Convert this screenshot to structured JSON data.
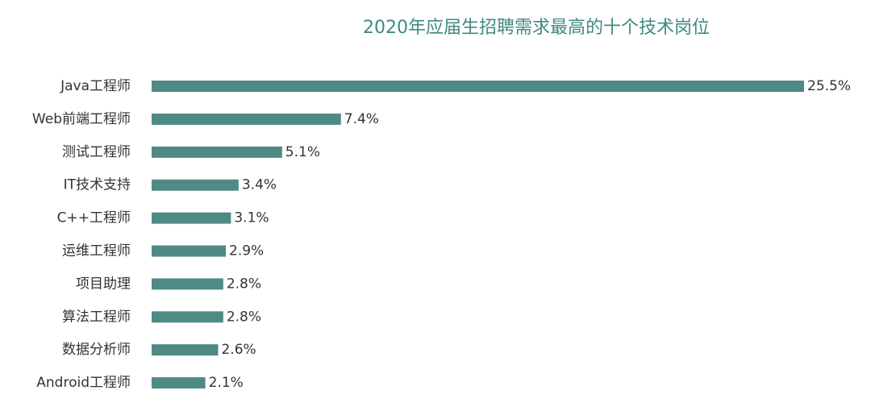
{
  "chart_data": {
    "type": "bar",
    "orientation": "horizontal",
    "title": "2020年应届生招聘需求最高的十个技术岗位",
    "categories": [
      "Java工程师",
      "Web前端工程师",
      "测试工程师",
      "IT技术支持",
      "C++工程师",
      "运维工程师",
      "项目助理",
      "算法工程师",
      "数据分析师",
      "Android工程师"
    ],
    "values": [
      25.5,
      7.4,
      5.1,
      3.4,
      3.1,
      2.9,
      2.8,
      2.8,
      2.6,
      2.1
    ],
    "value_labels": [
      "25.5%",
      "7.4%",
      "5.1%",
      "3.4%",
      "3.1%",
      "2.9%",
      "2.8%",
      "2.8%",
      "2.6%",
      "2.1%"
    ],
    "color": "#4f8a85"
  }
}
